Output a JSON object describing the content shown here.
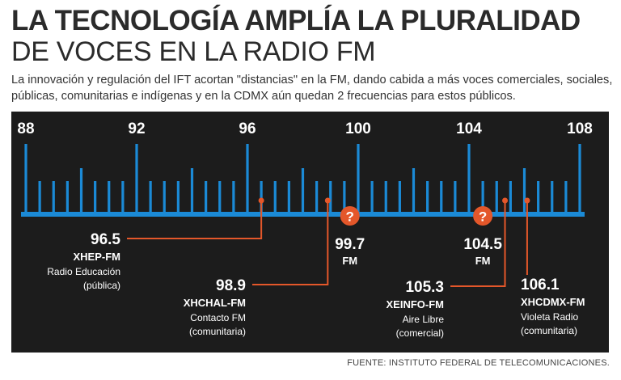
{
  "header": {
    "title_line1": "LA TECNOLOGÍA AMPLÍA LA PLURALIDAD",
    "title_line2": "DE VOCES EN LA RADIO FM",
    "subtitle": "La innovación y regulación del IFT acortan \"distancias\" en la FM, dando cabida a más voces comerciales, sociales, públicas, comunitarias e indígenas y en la CDMX aún quedan 2 frecuencias para estos públicos."
  },
  "dial": {
    "scale_labels": [
      "88",
      "92",
      "96",
      "100",
      "104",
      "108"
    ],
    "min_mhz": 88,
    "max_mhz": 108,
    "step_mhz": 0.5
  },
  "stations": [
    {
      "freq": "96.5",
      "call": "XHEP-FM",
      "name": "Radio Educación",
      "type": "(pública)"
    },
    {
      "freq": "98.9",
      "call": "XHCHAL-FM",
      "name": "Contacto FM",
      "type": "(comunitaria)"
    },
    {
      "freq": "105.3",
      "call": "XEINFO-FM",
      "name": "Aire Libre",
      "type": "(comercial)"
    },
    {
      "freq": "106.1",
      "call": "XHCDMX-FM",
      "name": "Violeta Radio",
      "type": "(comunitaria)"
    }
  ],
  "vacant": [
    {
      "freq": "99.7",
      "unit": "FM",
      "marker": "?"
    },
    {
      "freq": "104.5",
      "unit": "FM",
      "marker": "?"
    }
  ],
  "footer": {
    "source": "FUENTE: INSTITUTO FEDERAL DE TELECOMUNICACIONES."
  },
  "colors": {
    "panel": "#1c1c1c",
    "tick": "#1b8ad6",
    "accent": "#e4572a",
    "text": "#ffffff"
  }
}
